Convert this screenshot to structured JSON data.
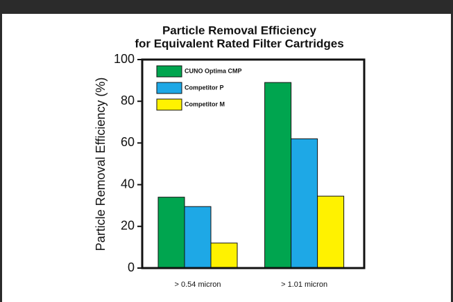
{
  "chart_data": {
    "type": "bar",
    "title": [
      "Particle Removal Efficiency",
      "for Equivalent Rated Filter Cartridges"
    ],
    "y_label": "Particle Removal Efficiency (%)",
    "categories": [
      "> 0.54 micron",
      "> 1.01 micron"
    ],
    "series": [
      {
        "name": "CUNO Optima CMP",
        "color": "#00a54f",
        "values": [
          34,
          89
        ]
      },
      {
        "name": "Competitor P",
        "color": "#1ea8e6",
        "values": [
          29.5,
          62
        ]
      },
      {
        "name": "Competitor M",
        "color": "#fff200",
        "values": [
          12,
          34.5
        ]
      }
    ],
    "ylim": [
      0,
      100
    ],
    "yticks": [
      0,
      20,
      40,
      60,
      80,
      100
    ],
    "legend": "upper left"
  }
}
